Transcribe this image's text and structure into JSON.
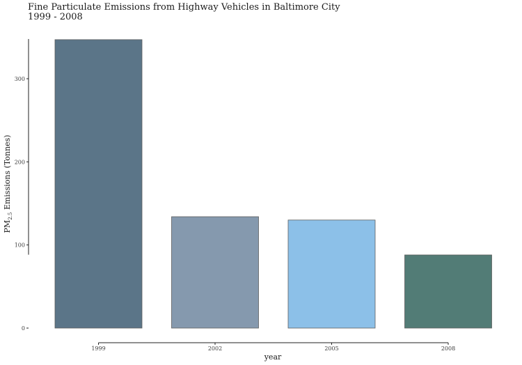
{
  "chart_data": {
    "type": "bar",
    "title": "Fine Particulate Emissions from Highway Vehicles in Baltimore City",
    "subtitle": "1999 - 2008",
    "xlabel": "year",
    "ylabel": "PM2.5 Emissions (Tonnes)",
    "ylabel_main": "PM",
    "ylabel_sub": "2.5",
    "ylabel_rest": " Emissions (Tonnes)",
    "categories": [
      "1999",
      "2002",
      "2005",
      "2008"
    ],
    "values": [
      347,
      134,
      130,
      88
    ],
    "colors": [
      "#5b7588",
      "#8599ae",
      "#8cc0e8",
      "#527c76"
    ],
    "yticks": [
      0,
      100,
      200,
      300
    ],
    "ytick_labels": [
      "0",
      "100",
      "200",
      "300"
    ],
    "ylim": [
      0,
      350
    ],
    "grid": false,
    "legend": "none"
  }
}
